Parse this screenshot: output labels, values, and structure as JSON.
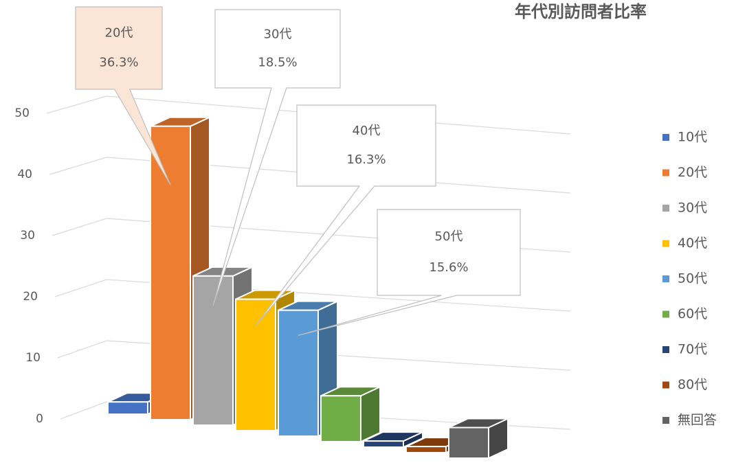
{
  "chart_data": {
    "type": "bar3d",
    "title": "年代別訪問者比率",
    "categories": [
      "10代",
      "20代",
      "30代",
      "40代",
      "50代",
      "60代",
      "70代",
      "80代",
      "無回答"
    ],
    "series": [
      {
        "name": null,
        "values": [
          2,
          48,
          24.4,
          21.5,
          20.6,
          7.5,
          1,
          1,
          5
        ]
      }
    ],
    "colors": [
      "#4472c4",
      "#ed7d31",
      "#a5a5a5",
      "#ffc000",
      "#5b9bd5",
      "#70ad47",
      "#264478",
      "#9e480e",
      "#636363"
    ],
    "ylim": [
      0,
      50
    ],
    "yticks": [
      0,
      10,
      20,
      30,
      40,
      50
    ],
    "grid": true,
    "legend": "right",
    "callouts": [
      {
        "category": "20代",
        "label": "36.3%"
      },
      {
        "category": "30代",
        "label": "18.5%"
      },
      {
        "category": "40代",
        "label": "16.3%"
      },
      {
        "category": "50代",
        "label": "15.6%"
      }
    ]
  }
}
